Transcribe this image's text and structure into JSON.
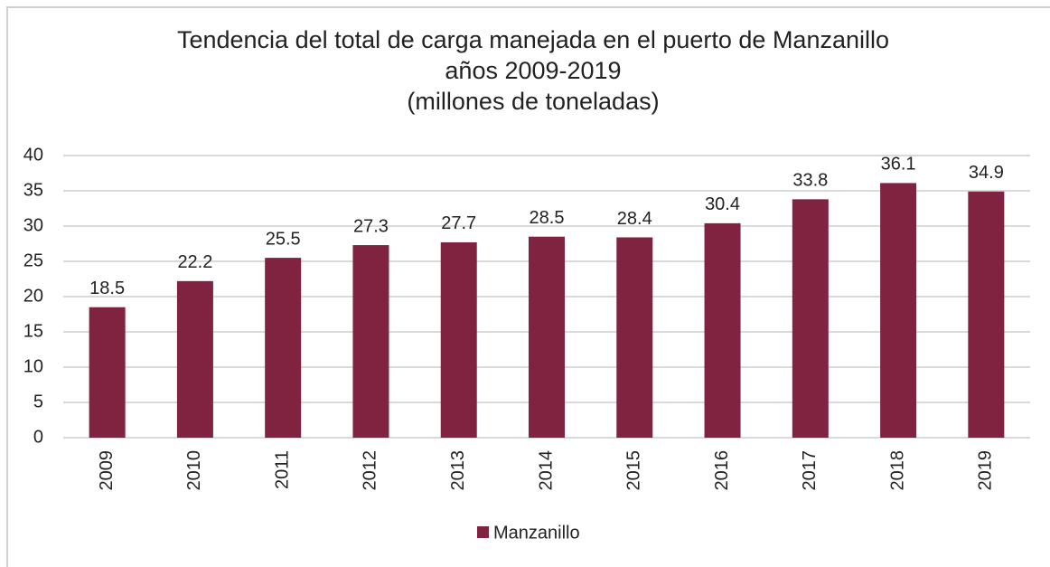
{
  "chart_data": {
    "type": "bar",
    "title": [
      "Tendencia del total de carga manejada en el puerto de Manzanillo",
      "años 2009-2019",
      "(millones de toneladas)"
    ],
    "categories": [
      "2009",
      "2010",
      "2011",
      "2012",
      "2013",
      "2014",
      "2015",
      "2016",
      "2017",
      "2018",
      "2019"
    ],
    "series": [
      {
        "name": "Manzanillo",
        "color": "#7f2340",
        "values": [
          18.5,
          22.2,
          25.5,
          27.3,
          27.7,
          28.5,
          28.4,
          30.4,
          33.8,
          36.1,
          34.9
        ]
      }
    ],
    "ylim": [
      0,
      40
    ],
    "yticks": [
      0,
      5,
      10,
      15,
      20,
      25,
      30,
      35,
      40
    ],
    "grid": true,
    "legend": "bottom"
  }
}
